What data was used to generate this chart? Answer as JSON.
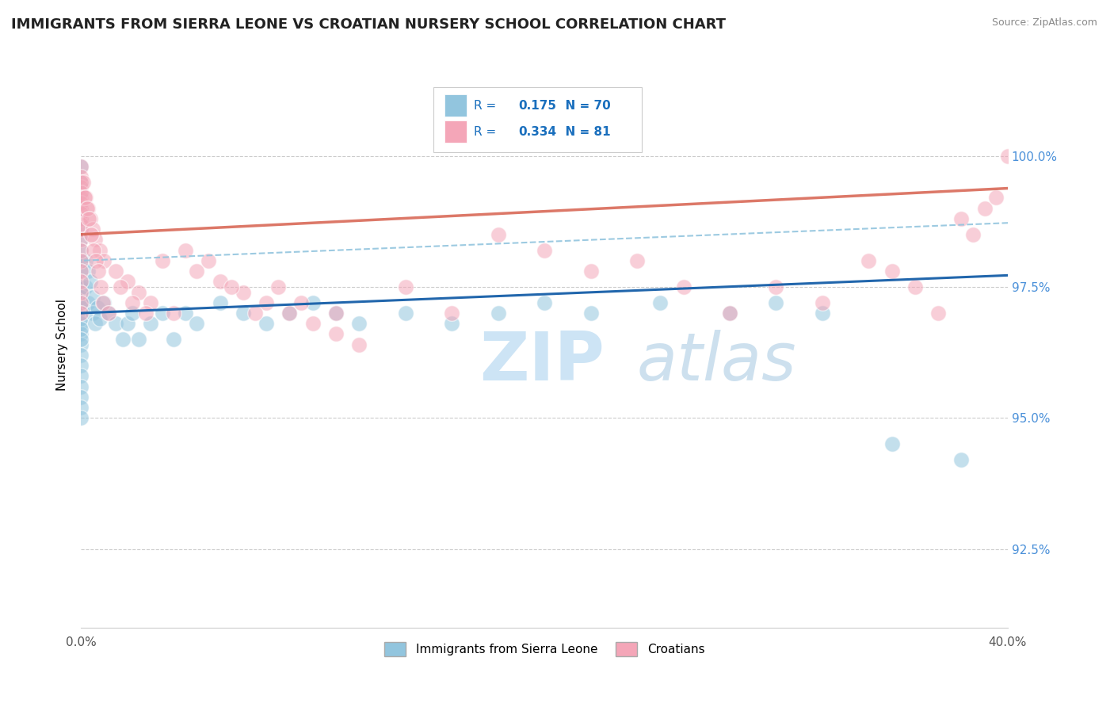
{
  "title": "IMMIGRANTS FROM SIERRA LEONE VS CROATIAN NURSERY SCHOOL CORRELATION CHART",
  "source": "Source: ZipAtlas.com",
  "ylabel": "Nursery School",
  "ytick_labels": [
    "92.5%",
    "95.0%",
    "97.5%",
    "100.0%"
  ],
  "ytick_values": [
    92.5,
    95.0,
    97.5,
    100.0
  ],
  "xrange": [
    0.0,
    40.0
  ],
  "yrange": [
    91.0,
    101.8
  ],
  "legend_blue_r": "0.175",
  "legend_blue_n": "70",
  "legend_pink_r": "0.334",
  "legend_pink_n": "81",
  "blue_color": "#92c5de",
  "pink_color": "#f4a6b8",
  "blue_line_color": "#2166ac",
  "pink_line_color": "#d6604d",
  "blue_dash_color": "#92c5de",
  "r_text_color": "#1a6fbd",
  "ytick_color": "#4a90d9",
  "blue_x": [
    0.0,
    0.0,
    0.0,
    0.0,
    0.0,
    0.0,
    0.0,
    0.0,
    0.0,
    0.0,
    0.0,
    0.0,
    0.0,
    0.0,
    0.0,
    0.0,
    0.0,
    0.0,
    0.0,
    0.0,
    0.0,
    0.0,
    0.0,
    0.0,
    0.0,
    0.0,
    0.0,
    0.0,
    0.0,
    0.0,
    0.2,
    0.2,
    0.3,
    0.3,
    0.4,
    0.5,
    0.5,
    0.6,
    0.7,
    0.8,
    1.0,
    1.2,
    1.5,
    1.8,
    2.0,
    2.2,
    2.5,
    3.0,
    3.5,
    4.0,
    4.5,
    5.0,
    6.0,
    7.0,
    8.0,
    9.0,
    10.0,
    11.0,
    12.0,
    14.0,
    16.0,
    18.0,
    20.0,
    22.0,
    25.0,
    28.0,
    30.0,
    32.0,
    35.0,
    38.0
  ],
  "blue_y": [
    99.8,
    99.5,
    99.3,
    99.0,
    98.8,
    98.6,
    98.4,
    98.2,
    98.0,
    97.8,
    97.6,
    97.4,
    97.2,
    97.0,
    96.8,
    96.6,
    96.4,
    96.2,
    96.0,
    95.8,
    95.6,
    95.4,
    95.2,
    95.0,
    97.5,
    97.3,
    97.1,
    96.9,
    96.7,
    96.5,
    98.0,
    97.5,
    97.8,
    97.2,
    97.6,
    97.0,
    97.3,
    96.8,
    97.1,
    96.9,
    97.2,
    97.0,
    96.8,
    96.5,
    96.8,
    97.0,
    96.5,
    96.8,
    97.0,
    96.5,
    97.0,
    96.8,
    97.2,
    97.0,
    96.8,
    97.0,
    97.2,
    97.0,
    96.8,
    97.0,
    96.8,
    97.0,
    97.2,
    97.0,
    97.2,
    97.0,
    97.2,
    97.0,
    94.5,
    94.2
  ],
  "pink_x": [
    0.0,
    0.0,
    0.0,
    0.0,
    0.0,
    0.0,
    0.0,
    0.0,
    0.0,
    0.0,
    0.0,
    0.0,
    0.0,
    0.0,
    0.0,
    0.0,
    0.0,
    0.0,
    0.0,
    0.0,
    0.2,
    0.3,
    0.4,
    0.5,
    0.6,
    0.8,
    1.0,
    1.5,
    2.0,
    2.5,
    3.0,
    4.0,
    5.0,
    6.0,
    7.0,
    8.0,
    9.0,
    10.0,
    11.0,
    12.0,
    14.0,
    16.0,
    18.0,
    20.0,
    22.0,
    24.0,
    26.0,
    28.0,
    30.0,
    32.0,
    34.0,
    35.0,
    36.0,
    37.0,
    38.0,
    38.5,
    39.0,
    39.5,
    40.0,
    0.1,
    0.15,
    0.25,
    0.35,
    0.45,
    0.55,
    0.65,
    0.75,
    0.85,
    0.95,
    1.2,
    1.7,
    2.2,
    2.8,
    3.5,
    4.5,
    5.5,
    6.5,
    7.5,
    8.5,
    9.5,
    11.0
  ],
  "pink_y": [
    99.8,
    99.6,
    99.4,
    99.2,
    99.0,
    98.8,
    98.6,
    98.4,
    98.2,
    98.0,
    97.8,
    97.6,
    97.4,
    97.2,
    97.0,
    99.5,
    99.3,
    99.1,
    98.9,
    98.7,
    99.2,
    99.0,
    98.8,
    98.6,
    98.4,
    98.2,
    98.0,
    97.8,
    97.6,
    97.4,
    97.2,
    97.0,
    97.8,
    97.6,
    97.4,
    97.2,
    97.0,
    96.8,
    96.6,
    96.4,
    97.5,
    97.0,
    98.5,
    98.2,
    97.8,
    98.0,
    97.5,
    97.0,
    97.5,
    97.2,
    98.0,
    97.8,
    97.5,
    97.0,
    98.8,
    98.5,
    99.0,
    99.2,
    100.0,
    99.5,
    99.2,
    99.0,
    98.8,
    98.5,
    98.2,
    98.0,
    97.8,
    97.5,
    97.2,
    97.0,
    97.5,
    97.2,
    97.0,
    98.0,
    98.2,
    98.0,
    97.5,
    97.0,
    97.5,
    97.2,
    97.0
  ]
}
